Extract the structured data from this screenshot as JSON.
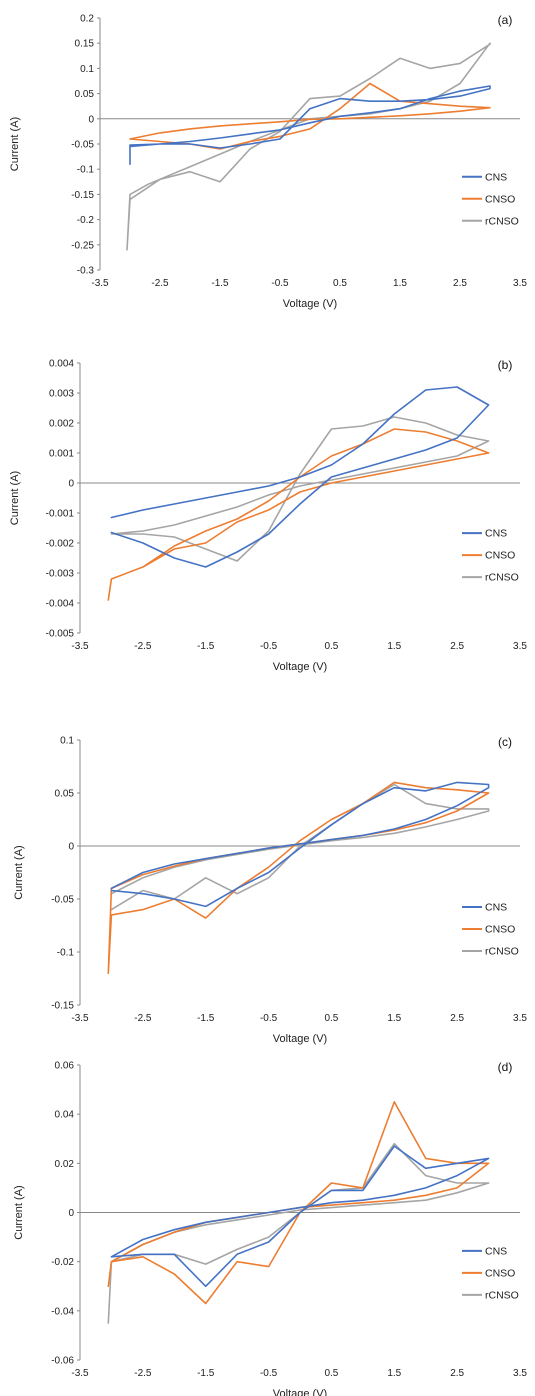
{
  "colors": {
    "CNS": "#4472c4",
    "CNSO": "#ed7d31",
    "rCNSO": "#a5a5a5",
    "axis": "#888888",
    "text": "#222222"
  },
  "chart_data": [
    {
      "type": "line",
      "panel_label": "(a)",
      "xlabel": "Voltage (V)",
      "ylabel": "Current (A)",
      "xlim": [
        -3.5,
        3.5
      ],
      "ylim": [
        -0.3,
        0.2
      ],
      "xticks": [
        "-3.5",
        "-2.5",
        "-1.5",
        "-0.5",
        "0.5",
        "1.5",
        "2.5",
        "3.5"
      ],
      "yticks": [
        "0.2",
        "0.15",
        "0.1",
        "0.05",
        "0",
        "-0.05",
        "-0.1",
        "-0.15",
        "-0.2",
        "-0.25",
        "-0.3"
      ],
      "legend": [
        "CNS",
        "CNSO",
        "rCNSO"
      ],
      "legend_position": "right",
      "series": [
        {
          "name": "CNS",
          "x": [
            -3.0,
            -2.5,
            -2.0,
            -1.5,
            -1.0,
            -0.5,
            0.0,
            0.5,
            1.0,
            1.5,
            2.0,
            2.5,
            3.0,
            3.0,
            2.5,
            2.0,
            1.5,
            1.0,
            0.5,
            0.0,
            -0.5,
            -1.0,
            -1.5,
            -2.0,
            -2.5,
            -3.0,
            -3.0
          ],
          "y": [
            -0.055,
            -0.05,
            -0.045,
            -0.038,
            -0.03,
            -0.022,
            -0.008,
            0.005,
            0.012,
            0.02,
            0.04,
            0.055,
            0.065,
            0.06,
            0.045,
            0.038,
            0.035,
            0.035,
            0.04,
            0.02,
            -0.04,
            -0.05,
            -0.058,
            -0.05,
            -0.05,
            -0.052,
            -0.09
          ]
        },
        {
          "name": "CNSO",
          "x": [
            -3.0,
            -2.5,
            -2.0,
            -1.5,
            -1.0,
            -0.5,
            0.0,
            0.5,
            1.0,
            1.5,
            2.0,
            2.5,
            3.0,
            3.0,
            2.5,
            2.0,
            1.5,
            1.0,
            0.5,
            0.0,
            -0.5,
            -1.0,
            -1.5,
            -2.0,
            -2.5,
            -3.0
          ],
          "y": [
            -0.04,
            -0.028,
            -0.02,
            -0.014,
            -0.01,
            -0.006,
            -0.001,
            0.0,
            0.003,
            0.006,
            0.01,
            0.015,
            0.022,
            0.022,
            0.025,
            0.03,
            0.035,
            0.07,
            0.02,
            -0.02,
            -0.035,
            -0.045,
            -0.06,
            -0.05,
            -0.045,
            -0.04
          ]
        },
        {
          "name": "rCNSO",
          "x": [
            -3.05,
            -3.0,
            -2.7,
            -2.3,
            -2.0,
            -1.5,
            -1.0,
            -0.5,
            0.0,
            0.5,
            1.0,
            1.5,
            2.0,
            2.5,
            3.0,
            3.0,
            2.5,
            2.0,
            1.5,
            1.0,
            0.5,
            0.0,
            -0.5,
            -1.0,
            -1.5,
            -2.0,
            -2.5,
            -3.0,
            -3.05
          ],
          "y": [
            -0.26,
            -0.15,
            -0.13,
            -0.11,
            -0.095,
            -0.07,
            -0.045,
            -0.022,
            0.0,
            0.005,
            0.01,
            0.02,
            0.035,
            0.07,
            0.15,
            0.148,
            0.11,
            0.1,
            0.12,
            0.08,
            0.045,
            0.04,
            -0.025,
            -0.06,
            -0.125,
            -0.105,
            -0.12,
            -0.16,
            -0.26
          ]
        }
      ]
    },
    {
      "type": "line",
      "panel_label": "(b)",
      "xlabel": "Voltage (V)",
      "ylabel": "Current (A)",
      "xlim": [
        -3.5,
        3.5
      ],
      "ylim": [
        -0.005,
        0.004
      ],
      "xticks": [
        "-3.5",
        "-2.5",
        "-1.5",
        "-0.5",
        "0.5",
        "1.5",
        "2.5",
        "3.5"
      ],
      "yticks": [
        "0.004",
        "0.003",
        "0.002",
        "0.001",
        "0",
        "-0.001",
        "-0.002",
        "-0.003",
        "-0.004",
        "-0.005"
      ],
      "legend": [
        "CNS",
        "CNSO",
        "rCNSO"
      ],
      "legend_position": "right",
      "series": [
        {
          "name": "CNS",
          "x": [
            -3.0,
            -2.5,
            -2.0,
            -1.5,
            -1.0,
            -0.5,
            0.0,
            0.5,
            1.0,
            1.5,
            2.0,
            2.5,
            3.0,
            3.0,
            2.5,
            2.0,
            1.5,
            1.0,
            0.5,
            0.0,
            -0.5,
            -1.0,
            -1.5,
            -2.0,
            -2.5,
            -3.0
          ],
          "y": [
            -0.00115,
            -0.0009,
            -0.0007,
            -0.0005,
            -0.0003,
            -0.0001,
            0.0002,
            0.0006,
            0.0013,
            0.0023,
            0.0031,
            0.0032,
            0.0026,
            0.0026,
            0.0015,
            0.0011,
            0.0008,
            0.0005,
            0.0002,
            -0.0007,
            -0.0017,
            -0.0023,
            -0.0028,
            -0.0025,
            -0.002,
            -0.00165
          ]
        },
        {
          "name": "CNSO",
          "x": [
            -3.05,
            -3.0,
            -2.5,
            -2.0,
            -1.5,
            -1.0,
            -0.5,
            0.0,
            0.5,
            1.0,
            1.5,
            2.0,
            2.5,
            3.0,
            3.0,
            2.5,
            2.0,
            1.5,
            1.0,
            0.5,
            0.0,
            -0.5,
            -1.0,
            -1.5,
            -2.0,
            -2.5,
            -3.0,
            -3.05
          ],
          "y": [
            -0.0039,
            -0.0032,
            -0.0028,
            -0.0021,
            -0.0016,
            -0.0012,
            -0.0006,
            0.0002,
            0.0009,
            0.0013,
            0.0018,
            0.0017,
            0.0014,
            0.001,
            0.001,
            0.0008,
            0.0006,
            0.0004,
            0.0002,
            0.0,
            -0.0003,
            -0.0009,
            -0.0013,
            -0.002,
            -0.0022,
            -0.0028,
            -0.0032,
            -0.0039
          ]
        },
        {
          "name": "rCNSO",
          "x": [
            -3.0,
            -2.5,
            -2.0,
            -1.5,
            -1.0,
            -0.5,
            0.0,
            0.5,
            1.0,
            1.5,
            2.0,
            2.5,
            3.0,
            3.0,
            2.5,
            2.0,
            1.5,
            1.0,
            0.5,
            0.0,
            -0.5,
            -1.0,
            -1.5,
            -2.0,
            -2.5,
            -3.0
          ],
          "y": [
            -0.0017,
            -0.0017,
            -0.0018,
            -0.0022,
            -0.0026,
            -0.0016,
            0.0003,
            0.0018,
            0.0019,
            0.0022,
            0.002,
            0.0016,
            0.0014,
            0.0014,
            0.0009,
            0.0007,
            0.0005,
            0.0003,
            0.0001,
            -0.0001,
            -0.0004,
            -0.0008,
            -0.0011,
            -0.0014,
            -0.0016,
            -0.0017
          ]
        }
      ]
    },
    {
      "type": "line",
      "panel_label": "(c)",
      "xlabel": "Voltage (V)",
      "ylabel": "Current (A)",
      "xlim": [
        -3.5,
        3.5
      ],
      "ylim": [
        -0.15,
        0.1
      ],
      "xticks": [
        "-3.5",
        "-2.5",
        "-1.5",
        "-0.5",
        "0.5",
        "1.5",
        "2.5",
        "3.5"
      ],
      "yticks": [
        "0.1",
        "0.05",
        "0",
        "-0.05",
        "-0.1",
        "-0.15"
      ],
      "legend": [
        "CNS",
        "CNSO",
        "rCNSO"
      ],
      "legend_position": "right",
      "series": [
        {
          "name": "CNS",
          "x": [
            -3.0,
            -2.5,
            -2.0,
            -1.5,
            -1.0,
            -0.5,
            0.0,
            0.5,
            1.0,
            1.5,
            2.0,
            2.5,
            3.0,
            3.0,
            2.5,
            2.0,
            1.5,
            1.0,
            0.5,
            0.0,
            -0.5,
            -1.0,
            -1.5,
            -2.0,
            -2.5,
            -3.0
          ],
          "y": [
            -0.04,
            -0.025,
            -0.017,
            -0.012,
            -0.007,
            -0.002,
            0.002,
            0.006,
            0.01,
            0.016,
            0.025,
            0.038,
            0.055,
            0.058,
            0.06,
            0.052,
            0.055,
            0.04,
            0.02,
            -0.002,
            -0.025,
            -0.04,
            -0.057,
            -0.05,
            -0.045,
            -0.042
          ]
        },
        {
          "name": "CNSO",
          "x": [
            -3.05,
            -3.0,
            -2.5,
            -2.0,
            -1.5,
            -1.0,
            -0.5,
            0.0,
            0.5,
            1.0,
            1.5,
            2.0,
            2.5,
            3.0,
            3.0,
            2.5,
            2.0,
            1.5,
            1.0,
            0.5,
            0.0,
            -0.5,
            -1.0,
            -1.5,
            -2.0,
            -2.5,
            -3.0,
            -3.05
          ],
          "y": [
            -0.12,
            -0.04,
            -0.027,
            -0.019,
            -0.012,
            -0.007,
            -0.002,
            0.002,
            0.006,
            0.01,
            0.015,
            0.022,
            0.033,
            0.05,
            0.05,
            0.053,
            0.055,
            0.06,
            0.04,
            0.025,
            0.005,
            -0.02,
            -0.04,
            -0.068,
            -0.05,
            -0.06,
            -0.065,
            -0.12
          ]
        },
        {
          "name": "rCNSO",
          "x": [
            -3.0,
            -2.5,
            -2.0,
            -1.5,
            -1.0,
            -0.5,
            0.0,
            0.5,
            1.0,
            1.5,
            2.0,
            2.5,
            3.0,
            3.0,
            2.5,
            2.0,
            1.5,
            1.0,
            0.5,
            0.0,
            -0.5,
            -1.0,
            -1.5,
            -2.0,
            -2.5,
            -3.0
          ],
          "y": [
            -0.045,
            -0.03,
            -0.02,
            -0.013,
            -0.008,
            -0.003,
            0.001,
            0.005,
            0.008,
            0.012,
            0.018,
            0.025,
            0.033,
            0.035,
            0.035,
            0.04,
            0.058,
            0.04,
            0.02,
            0.0,
            -0.03,
            -0.045,
            -0.03,
            -0.05,
            -0.042,
            -0.06
          ]
        }
      ]
    },
    {
      "type": "line",
      "panel_label": "(d)",
      "xlabel": "Voltage (V)",
      "ylabel": "Current (A)",
      "xlim": [
        -3.5,
        3.5
      ],
      "ylim": [
        -0.06,
        0.06
      ],
      "xticks": [
        "-3.5",
        "-2.5",
        "-1.5",
        "-0.5",
        "0.5",
        "1.5",
        "2.5",
        "3.5"
      ],
      "yticks": [
        "0.06",
        "0.04",
        "0.02",
        "0",
        "-0.02",
        "-0.04",
        "-0.06"
      ],
      "legend": [
        "CNS",
        "CNSO",
        "rCNSO"
      ],
      "legend_position": "right",
      "series": [
        {
          "name": "CNS",
          "x": [
            -3.0,
            -2.5,
            -2.0,
            -1.5,
            -1.0,
            -0.5,
            0.0,
            0.5,
            1.0,
            1.5,
            2.0,
            2.5,
            3.0,
            3.0,
            2.5,
            2.0,
            1.5,
            1.0,
            0.5,
            0.0,
            -0.5,
            -1.0,
            -1.5,
            -2.0,
            -2.5,
            -3.0
          ],
          "y": [
            -0.018,
            -0.011,
            -0.007,
            -0.004,
            -0.002,
            0.0,
            0.002,
            0.004,
            0.005,
            0.007,
            0.01,
            0.015,
            0.022,
            0.022,
            0.02,
            0.018,
            0.027,
            0.009,
            0.009,
            0.0,
            -0.012,
            -0.017,
            -0.03,
            -0.017,
            -0.017,
            -0.018
          ]
        },
        {
          "name": "CNSO",
          "x": [
            -3.05,
            -3.0,
            -2.5,
            -2.0,
            -1.5,
            -1.0,
            -0.5,
            0.0,
            0.5,
            1.0,
            1.5,
            2.0,
            2.5,
            3.0,
            3.0,
            2.5,
            2.0,
            1.5,
            1.0,
            0.5,
            0.0,
            -0.5,
            -1.0,
            -1.5,
            -2.0,
            -2.5,
            -3.0,
            -3.05
          ],
          "y": [
            -0.03,
            -0.02,
            -0.013,
            -0.008,
            -0.004,
            -0.002,
            0.0,
            0.002,
            0.003,
            0.004,
            0.005,
            0.007,
            0.01,
            0.02,
            0.02,
            0.02,
            0.022,
            0.045,
            0.01,
            0.012,
            0.0,
            -0.022,
            -0.02,
            -0.037,
            -0.025,
            -0.018,
            -0.02,
            -0.03
          ]
        },
        {
          "name": "rCNSO",
          "x": [
            -3.05,
            -3.0,
            -2.5,
            -2.0,
            -1.5,
            -1.0,
            -0.5,
            0.0,
            0.5,
            1.0,
            1.5,
            2.0,
            2.5,
            3.0,
            3.0,
            2.5,
            2.0,
            1.5,
            1.0,
            0.5,
            0.0,
            -0.5,
            -1.0,
            -1.5,
            -2.0,
            -2.5,
            -3.0,
            -3.05
          ],
          "y": [
            -0.045,
            -0.02,
            -0.013,
            -0.008,
            -0.005,
            -0.003,
            -0.001,
            0.001,
            0.002,
            0.003,
            0.004,
            0.005,
            0.008,
            0.012,
            0.012,
            0.012,
            0.015,
            0.028,
            0.01,
            0.009,
            0.0,
            -0.01,
            -0.015,
            -0.021,
            -0.017,
            -0.017,
            -0.02,
            -0.045
          ]
        }
      ]
    }
  ]
}
